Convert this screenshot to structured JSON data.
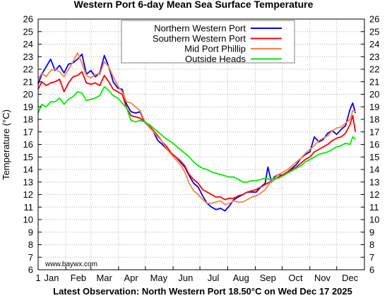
{
  "chart_data": {
    "type": "line",
    "title": "Western Port 6-day Mean Sea Surface Temperature",
    "ylabel": "Temperature (°C)",
    "xlabel": "",
    "ylim": [
      6,
      26
    ],
    "xlim": [
      1,
      366
    ],
    "yticks": [
      6,
      7,
      8,
      9,
      10,
      11,
      12,
      13,
      14,
      15,
      16,
      17,
      18,
      19,
      20,
      21,
      22,
      23,
      24,
      25,
      26
    ],
    "xticks": [
      {
        "label": "1",
        "x": 1
      },
      {
        "label": "Jan",
        "x": 16
      },
      {
        "label": "Feb",
        "x": 46
      },
      {
        "label": "Mar",
        "x": 75
      },
      {
        "label": "Apr",
        "x": 105
      },
      {
        "label": "May",
        "x": 136
      },
      {
        "label": "Jun",
        "x": 166
      },
      {
        "label": "Jul",
        "x": 197
      },
      {
        "label": "Aug",
        "x": 228
      },
      {
        "label": "Sep",
        "x": 258
      },
      {
        "label": "Oct",
        "x": 289
      },
      {
        "label": "Nov",
        "x": 319
      },
      {
        "label": "Dec",
        "x": 350
      }
    ],
    "gridlines_x": [
      1,
      32,
      60,
      91,
      121,
      152,
      182,
      213,
      244,
      274,
      305,
      335,
      366
    ],
    "grid": true,
    "legend_position": "top-right",
    "watermark": "www.baywx.com",
    "footer": "Latest Observation: North Western Port 18.50°C on Wed Dec 17 2025",
    "series": [
      {
        "name": "Northern Western Port",
        "color": "#0000ff",
        "points": [
          [
            1,
            20.8
          ],
          [
            5,
            21.6
          ],
          [
            10,
            22.2
          ],
          [
            15,
            22.8
          ],
          [
            20,
            21.9
          ],
          [
            25,
            22.3
          ],
          [
            30,
            21.7
          ],
          [
            35,
            22.4
          ],
          [
            40,
            22.5
          ],
          [
            45,
            22.8
          ],
          [
            50,
            23.2
          ],
          [
            55,
            21.6
          ],
          [
            60,
            21.9
          ],
          [
            65,
            21.4
          ],
          [
            70,
            21.7
          ],
          [
            75,
            23.1
          ],
          [
            80,
            22.2
          ],
          [
            85,
            21.0
          ],
          [
            90,
            20.5
          ],
          [
            95,
            20.4
          ],
          [
            100,
            19.2
          ],
          [
            105,
            18.6
          ],
          [
            110,
            18.5
          ],
          [
            115,
            18.6
          ],
          [
            120,
            17.8
          ],
          [
            125,
            17.4
          ],
          [
            130,
            17.0
          ],
          [
            135,
            16.3
          ],
          [
            140,
            16.0
          ],
          [
            145,
            15.6
          ],
          [
            150,
            15.3
          ],
          [
            155,
            15.0
          ],
          [
            160,
            14.6
          ],
          [
            165,
            14.2
          ],
          [
            170,
            13.5
          ],
          [
            175,
            12.9
          ],
          [
            180,
            12.6
          ],
          [
            185,
            11.9
          ],
          [
            190,
            11.3
          ],
          [
            195,
            11.0
          ],
          [
            200,
            10.8
          ],
          [
            205,
            10.9
          ],
          [
            210,
            10.7
          ],
          [
            215,
            11.1
          ],
          [
            220,
            11.6
          ],
          [
            225,
            11.8
          ],
          [
            230,
            12.0
          ],
          [
            235,
            12.2
          ],
          [
            240,
            12.2
          ],
          [
            245,
            12.2
          ],
          [
            250,
            12.6
          ],
          [
            255,
            12.9
          ],
          [
            258,
            14.2
          ],
          [
            262,
            13.0
          ],
          [
            265,
            13.4
          ],
          [
            270,
            13.6
          ],
          [
            275,
            13.5
          ],
          [
            280,
            13.8
          ],
          [
            285,
            14.1
          ],
          [
            290,
            14.4
          ],
          [
            295,
            14.9
          ],
          [
            300,
            15.2
          ],
          [
            305,
            15.4
          ],
          [
            310,
            16.6
          ],
          [
            315,
            16.2
          ],
          [
            320,
            16.4
          ],
          [
            325,
            16.9
          ],
          [
            330,
            17.1
          ],
          [
            335,
            16.8
          ],
          [
            340,
            17.2
          ],
          [
            345,
            17.5
          ],
          [
            350,
            18.8
          ],
          [
            353,
            19.3
          ],
          [
            356,
            18.5
          ]
        ]
      },
      {
        "name": "Southern Western Port",
        "color": "#ff0000",
        "points": [
          [
            1,
            20.4
          ],
          [
            5,
            21.0
          ],
          [
            10,
            20.7
          ],
          [
            15,
            20.9
          ],
          [
            20,
            21.0
          ],
          [
            25,
            21.2
          ],
          [
            30,
            20.2
          ],
          [
            35,
            20.9
          ],
          [
            40,
            21.4
          ],
          [
            45,
            21.5
          ],
          [
            50,
            21.8
          ],
          [
            55,
            20.9
          ],
          [
            60,
            20.8
          ],
          [
            65,
            20.9
          ],
          [
            70,
            20.7
          ],
          [
            75,
            21.5
          ],
          [
            80,
            21.0
          ],
          [
            85,
            20.4
          ],
          [
            90,
            20.2
          ],
          [
            95,
            20.0
          ],
          [
            100,
            18.9
          ],
          [
            105,
            18.3
          ],
          [
            110,
            18.2
          ],
          [
            115,
            18.1
          ],
          [
            120,
            17.8
          ],
          [
            125,
            17.5
          ],
          [
            130,
            17.1
          ],
          [
            135,
            16.7
          ],
          [
            140,
            16.2
          ],
          [
            145,
            15.8
          ],
          [
            150,
            15.3
          ],
          [
            155,
            15.0
          ],
          [
            160,
            14.7
          ],
          [
            165,
            14.3
          ],
          [
            170,
            13.6
          ],
          [
            175,
            13.2
          ],
          [
            180,
            12.9
          ],
          [
            185,
            12.4
          ],
          [
            190,
            12.2
          ],
          [
            195,
            12.0
          ],
          [
            200,
            11.8
          ],
          [
            205,
            11.8
          ],
          [
            210,
            11.6
          ],
          [
            215,
            11.7
          ],
          [
            220,
            11.7
          ],
          [
            225,
            11.9
          ],
          [
            230,
            12.0
          ],
          [
            235,
            12.2
          ],
          [
            240,
            12.3
          ],
          [
            245,
            12.4
          ],
          [
            250,
            12.6
          ],
          [
            255,
            12.8
          ],
          [
            260,
            13.0
          ],
          [
            265,
            13.2
          ],
          [
            270,
            13.4
          ],
          [
            275,
            13.6
          ],
          [
            280,
            13.8
          ],
          [
            285,
            14.0
          ],
          [
            290,
            14.2
          ],
          [
            295,
            14.5
          ],
          [
            300,
            14.8
          ],
          [
            305,
            15.0
          ],
          [
            310,
            15.4
          ],
          [
            315,
            15.6
          ],
          [
            320,
            15.8
          ],
          [
            325,
            16.0
          ],
          [
            330,
            16.3
          ],
          [
            335,
            16.5
          ],
          [
            340,
            16.6
          ],
          [
            345,
            16.9
          ],
          [
            350,
            17.6
          ],
          [
            353,
            18.3
          ],
          [
            356,
            17.0
          ]
        ]
      },
      {
        "name": "Mid Port Phillip",
        "color": "#ff8040",
        "points": [
          [
            1,
            21.2
          ],
          [
            5,
            21.7
          ],
          [
            10,
            21.4
          ],
          [
            15,
            21.9
          ],
          [
            20,
            22.0
          ],
          [
            25,
            21.8
          ],
          [
            30,
            21.4
          ],
          [
            35,
            22.0
          ],
          [
            40,
            22.6
          ],
          [
            45,
            23.3
          ],
          [
            50,
            22.5
          ],
          [
            55,
            21.5
          ],
          [
            60,
            21.3
          ],
          [
            65,
            21.6
          ],
          [
            70,
            21.6
          ],
          [
            75,
            22.6
          ],
          [
            80,
            22.2
          ],
          [
            85,
            21.4
          ],
          [
            90,
            20.7
          ],
          [
            95,
            20.2
          ],
          [
            100,
            19.4
          ],
          [
            105,
            19.3
          ],
          [
            110,
            19.0
          ],
          [
            115,
            18.7
          ],
          [
            120,
            17.9
          ],
          [
            125,
            17.4
          ],
          [
            130,
            17.0
          ],
          [
            135,
            16.6
          ],
          [
            140,
            16.2
          ],
          [
            145,
            15.6
          ],
          [
            150,
            15.2
          ],
          [
            155,
            14.8
          ],
          [
            160,
            14.4
          ],
          [
            165,
            13.8
          ],
          [
            170,
            12.9
          ],
          [
            175,
            12.3
          ],
          [
            180,
            12.0
          ],
          [
            185,
            11.6
          ],
          [
            190,
            11.3
          ],
          [
            195,
            11.3
          ],
          [
            200,
            11.4
          ],
          [
            205,
            11.5
          ],
          [
            210,
            11.2
          ],
          [
            215,
            11.3
          ],
          [
            220,
            11.5
          ],
          [
            225,
            11.4
          ],
          [
            230,
            11.4
          ],
          [
            235,
            11.6
          ],
          [
            240,
            11.8
          ],
          [
            245,
            11.9
          ],
          [
            250,
            12.1
          ],
          [
            255,
            12.4
          ],
          [
            260,
            12.9
          ],
          [
            265,
            13.3
          ],
          [
            270,
            13.6
          ],
          [
            275,
            13.8
          ],
          [
            280,
            14.0
          ],
          [
            285,
            14.3
          ],
          [
            290,
            14.6
          ],
          [
            295,
            14.9
          ],
          [
            300,
            15.3
          ],
          [
            305,
            15.6
          ],
          [
            310,
            15.9
          ],
          [
            315,
            16.3
          ],
          [
            320,
            16.5
          ],
          [
            325,
            16.7
          ],
          [
            330,
            17.1
          ],
          [
            335,
            17.3
          ],
          [
            340,
            17.4
          ],
          [
            345,
            17.7
          ],
          [
            350,
            18.0
          ],
          [
            353,
            18.7
          ],
          [
            356,
            18.6
          ]
        ]
      },
      {
        "name": "Outside Heads",
        "color": "#00ee00",
        "points": [
          [
            1,
            18.5
          ],
          [
            5,
            19.2
          ],
          [
            10,
            19.0
          ],
          [
            15,
            19.4
          ],
          [
            20,
            19.4
          ],
          [
            25,
            19.7
          ],
          [
            30,
            19.2
          ],
          [
            35,
            19.6
          ],
          [
            40,
            19.8
          ],
          [
            45,
            20.2
          ],
          [
            50,
            20.1
          ],
          [
            55,
            19.5
          ],
          [
            60,
            19.6
          ],
          [
            65,
            19.7
          ],
          [
            70,
            19.9
          ],
          [
            75,
            20.6
          ],
          [
            80,
            20.3
          ],
          [
            85,
            19.9
          ],
          [
            90,
            19.7
          ],
          [
            95,
            19.3
          ],
          [
            100,
            18.9
          ],
          [
            105,
            17.9
          ],
          [
            110,
            17.8
          ],
          [
            115,
            17.9
          ],
          [
            120,
            17.8
          ],
          [
            125,
            17.6
          ],
          [
            130,
            17.3
          ],
          [
            135,
            17.0
          ],
          [
            140,
            16.7
          ],
          [
            145,
            16.4
          ],
          [
            150,
            16.2
          ],
          [
            155,
            15.9
          ],
          [
            160,
            15.6
          ],
          [
            165,
            15.3
          ],
          [
            170,
            15.0
          ],
          [
            175,
            14.6
          ],
          [
            180,
            14.3
          ],
          [
            185,
            14.1
          ],
          [
            190,
            14.0
          ],
          [
            195,
            13.8
          ],
          [
            200,
            13.7
          ],
          [
            205,
            13.6
          ],
          [
            210,
            13.5
          ],
          [
            215,
            13.4
          ],
          [
            220,
            13.4
          ],
          [
            225,
            13.2
          ],
          [
            230,
            13.0
          ],
          [
            235,
            13.0
          ],
          [
            240,
            13.1
          ],
          [
            245,
            13.1
          ],
          [
            250,
            13.2
          ],
          [
            255,
            13.3
          ],
          [
            260,
            13.2
          ],
          [
            265,
            13.3
          ],
          [
            270,
            13.3
          ],
          [
            275,
            13.5
          ],
          [
            280,
            13.7
          ],
          [
            285,
            13.9
          ],
          [
            290,
            14.1
          ],
          [
            295,
            14.3
          ],
          [
            300,
            14.6
          ],
          [
            305,
            14.8
          ],
          [
            310,
            15.0
          ],
          [
            315,
            15.2
          ],
          [
            320,
            15.3
          ],
          [
            325,
            15.4
          ],
          [
            330,
            15.6
          ],
          [
            335,
            15.8
          ],
          [
            340,
            15.9
          ],
          [
            345,
            16.1
          ],
          [
            350,
            16.0
          ],
          [
            353,
            16.6
          ],
          [
            356,
            16.4
          ]
        ]
      }
    ]
  }
}
